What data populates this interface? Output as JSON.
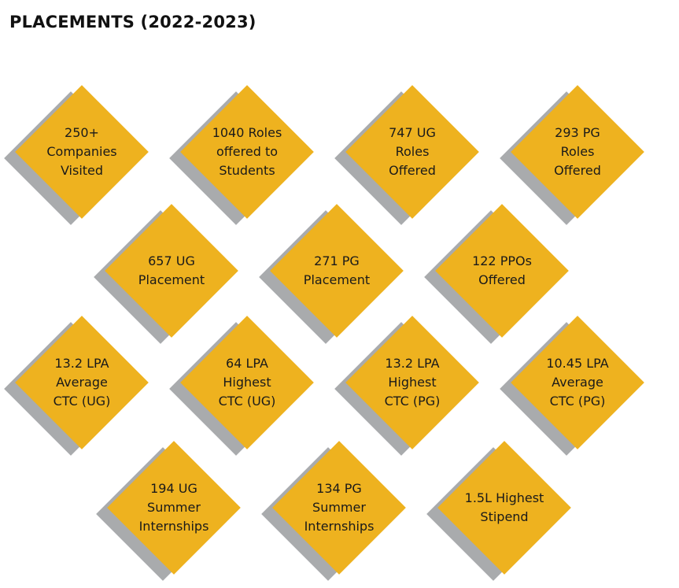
{
  "title": "PLACEMENTS (2022-2023)",
  "colors": {
    "diamond": "#eeb21f",
    "shadow": "#a9abad",
    "text": "#1a1a1a"
  },
  "stats": [
    {
      "lines": [
        "250+",
        "Companies",
        "Visited"
      ]
    },
    {
      "lines": [
        "1040 Roles",
        "offered to",
        "Students"
      ]
    },
    {
      "lines": [
        "747 UG",
        "Roles",
        "Offered"
      ]
    },
    {
      "lines": [
        "293 PG",
        "Roles",
        "Offered"
      ]
    },
    {
      "lines": [
        "657 UG",
        "Placement"
      ]
    },
    {
      "lines": [
        "271 PG",
        "Placement"
      ]
    },
    {
      "lines": [
        "122 PPOs",
        "Offered"
      ]
    },
    {
      "lines": [
        "13.2 LPA",
        "Average",
        "CTC (UG)"
      ]
    },
    {
      "lines": [
        "64 LPA",
        "Highest",
        "CTC (UG)"
      ]
    },
    {
      "lines": [
        "13.2 LPA",
        "Highest",
        "CTC (PG)"
      ]
    },
    {
      "lines": [
        "10.45 LPA",
        "Average",
        "CTC (PG)"
      ]
    },
    {
      "lines": [
        "194 UG",
        "Summer",
        "Internships"
      ]
    },
    {
      "lines": [
        "134 PG",
        "Summer",
        "Internships"
      ]
    },
    {
      "lines": [
        "1.5L Highest",
        "Stipend"
      ]
    }
  ]
}
